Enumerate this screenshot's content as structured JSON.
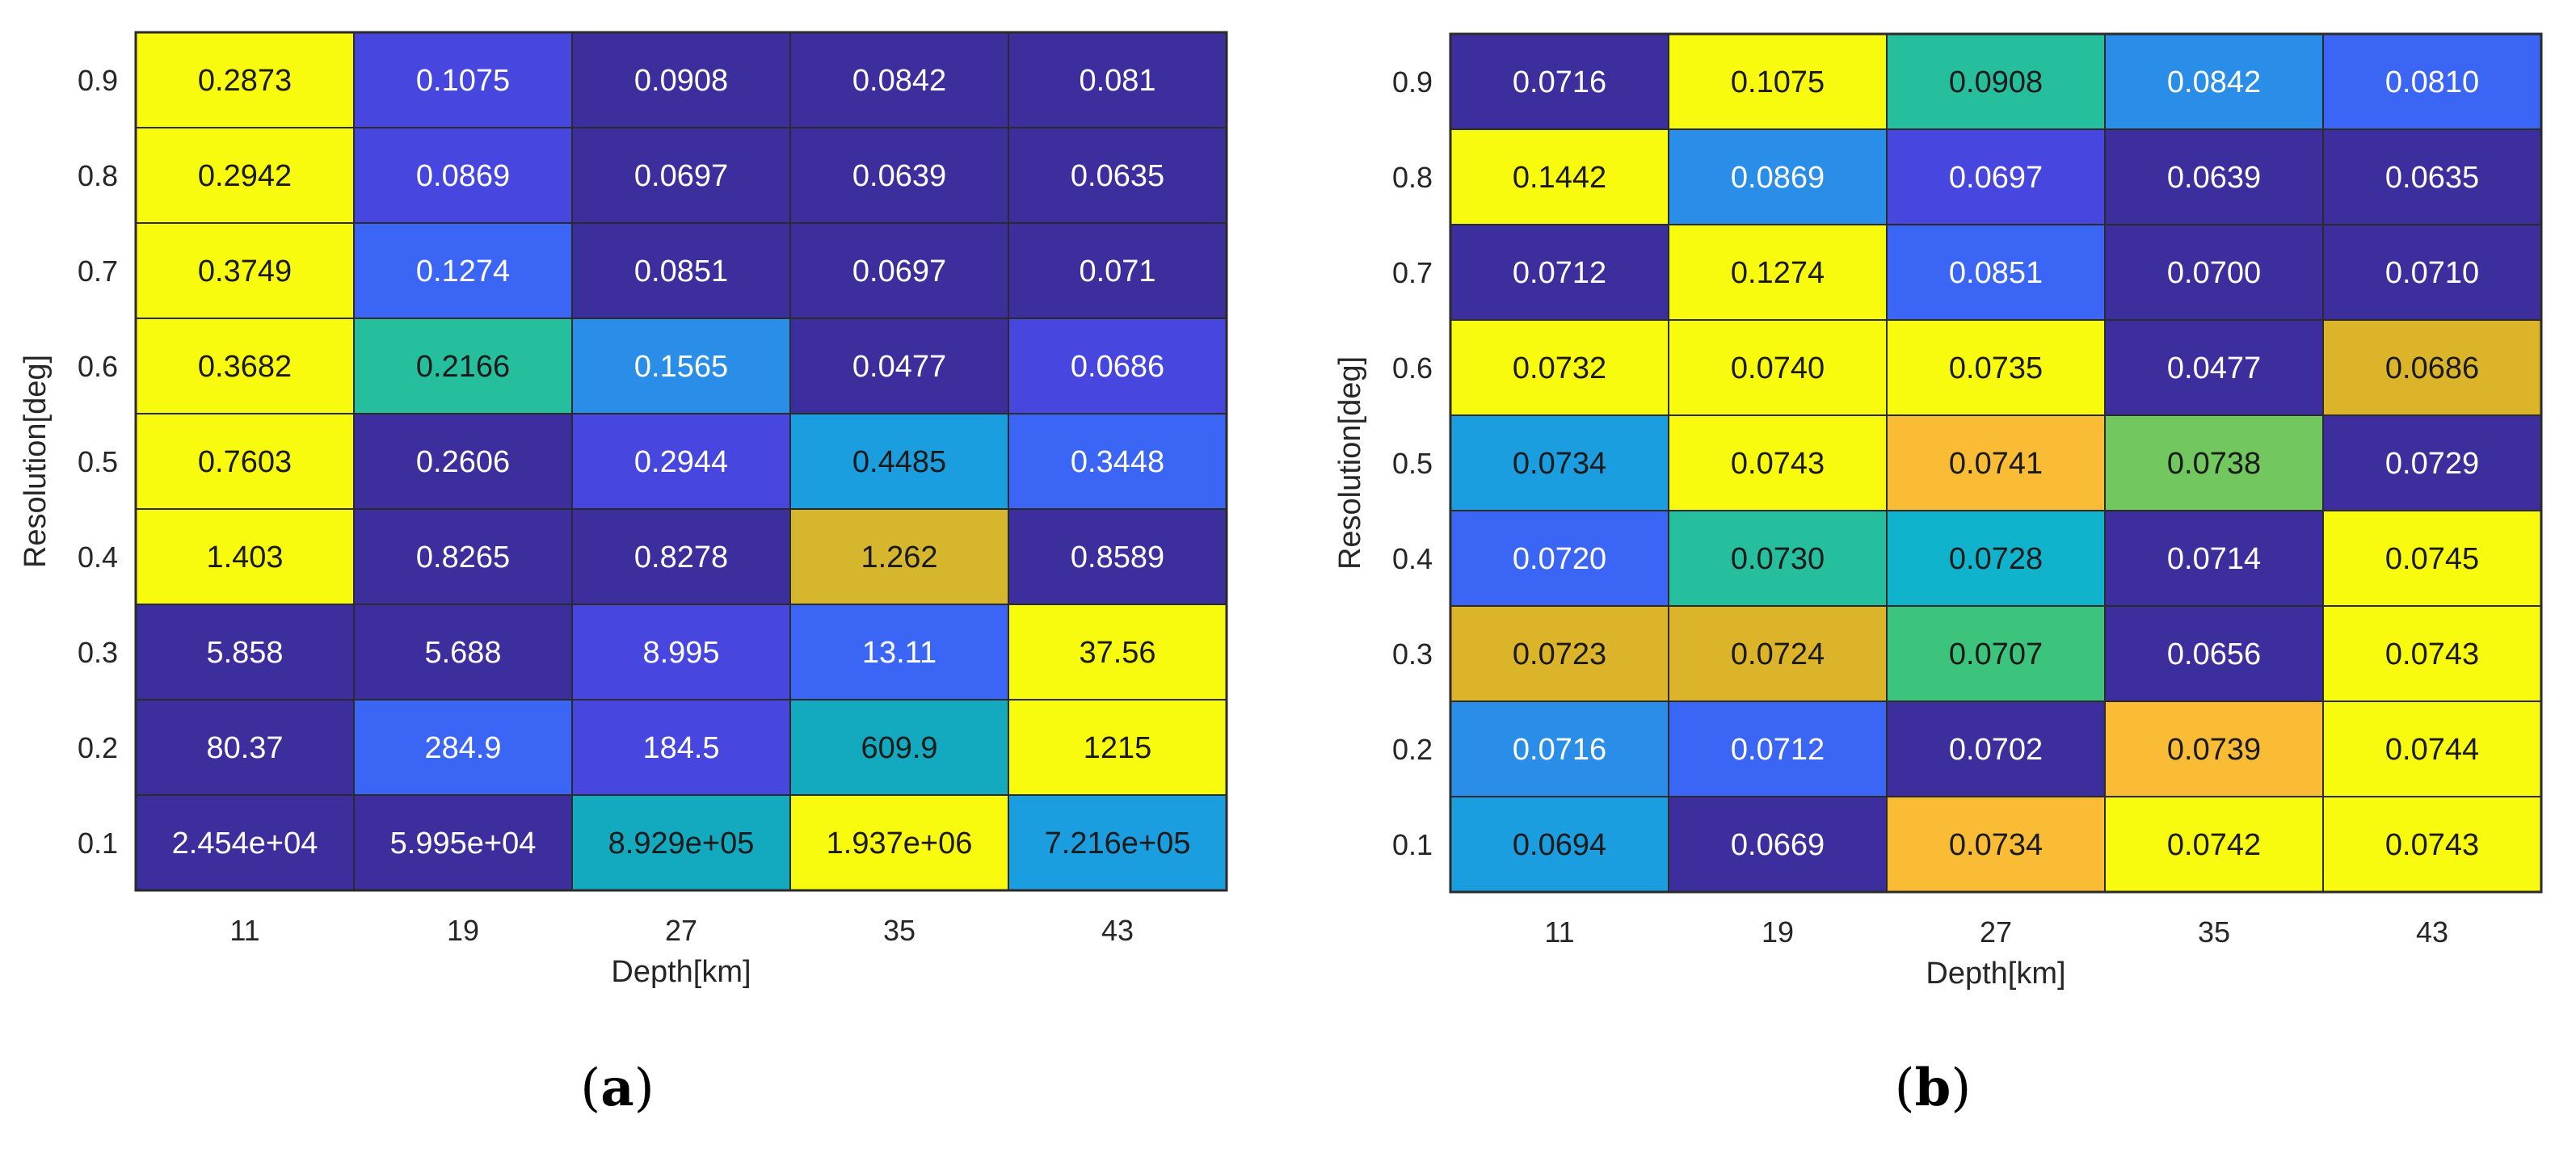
{
  "colors": {
    "dark_blue": "#3d2e9e",
    "blue": "#4747e0",
    "mid_blue": "#3b66f5",
    "sky_blue": "#2a8ee8",
    "light_blue": "#1a9ee0",
    "teal": "#13aabf",
    "cyan": "#0fb4cc",
    "green_teal": "#26bf9e",
    "green": "#3cc47c",
    "light_green": "#72c75f",
    "olive": "#d5b62d",
    "dark_yellow": "#dcb42a",
    "orange": "#fbbc35",
    "bright_yellow": "#f9fb0e",
    "text_dark": "#1a1a1a",
    "text_light": "#ffffff",
    "border": "#2b2b2b"
  },
  "chart_data": [
    {
      "type": "heatmap",
      "panel_label": "a",
      "xlabel": "Depth[km]",
      "ylabel": "Resolution[deg]",
      "x": [
        "11",
        "19",
        "27",
        "35",
        "43"
      ],
      "y": [
        "0.9",
        "0.8",
        "0.7",
        "0.6",
        "0.5",
        "0.4",
        "0.3",
        "0.2",
        "0.1"
      ],
      "values": [
        [
          "0.2873",
          "0.1075",
          "0.0908",
          "0.0842",
          "0.081"
        ],
        [
          "0.2942",
          "0.0869",
          "0.0697",
          "0.0639",
          "0.0635"
        ],
        [
          "0.3749",
          "0.1274",
          "0.0851",
          "0.0697",
          "0.071"
        ],
        [
          "0.3682",
          "0.2166",
          "0.1565",
          "0.0477",
          "0.0686"
        ],
        [
          "0.7603",
          "0.2606",
          "0.2944",
          "0.4485",
          "0.3448"
        ],
        [
          "1.403",
          "0.8265",
          "0.8278",
          "1.262",
          "0.8589"
        ],
        [
          "5.858",
          "5.688",
          "8.995",
          "13.11",
          "37.56"
        ],
        [
          "80.37",
          "284.9",
          "184.5",
          "609.9",
          "1215"
        ],
        [
          "2.454e+04",
          "5.995e+04",
          "8.929e+05",
          "1.937e+06",
          "7.216e+05"
        ]
      ],
      "cell_colors": [
        [
          "bright_yellow",
          "blue",
          "dark_blue",
          "dark_blue",
          "dark_blue"
        ],
        [
          "bright_yellow",
          "blue",
          "dark_blue",
          "dark_blue",
          "dark_blue"
        ],
        [
          "bright_yellow",
          "mid_blue",
          "dark_blue",
          "dark_blue",
          "dark_blue"
        ],
        [
          "bright_yellow",
          "green_teal",
          "sky_blue",
          "dark_blue",
          "blue"
        ],
        [
          "bright_yellow",
          "dark_blue",
          "blue",
          "light_blue",
          "mid_blue"
        ],
        [
          "bright_yellow",
          "dark_blue",
          "dark_blue",
          "olive",
          "dark_blue"
        ],
        [
          "dark_blue",
          "dark_blue",
          "blue",
          "mid_blue",
          "bright_yellow"
        ],
        [
          "dark_blue",
          "mid_blue",
          "blue",
          "teal",
          "bright_yellow"
        ],
        [
          "dark_blue",
          "dark_blue",
          "teal",
          "bright_yellow",
          "light_blue"
        ]
      ]
    },
    {
      "type": "heatmap",
      "panel_label": "b",
      "xlabel": "Depth[km]",
      "ylabel": "Resolution[deg]",
      "x": [
        "11",
        "19",
        "27",
        "35",
        "43"
      ],
      "y": [
        "0.9",
        "0.8",
        "0.7",
        "0.6",
        "0.5",
        "0.4",
        "0.3",
        "0.2",
        "0.1"
      ],
      "values": [
        [
          "0.0716",
          "0.1075",
          "0.0908",
          "0.0842",
          "0.0810"
        ],
        [
          "0.1442",
          "0.0869",
          "0.0697",
          "0.0639",
          "0.0635"
        ],
        [
          "0.0712",
          "0.1274",
          "0.0851",
          "0.0700",
          "0.0710"
        ],
        [
          "0.0732",
          "0.0740",
          "0.0735",
          "0.0477",
          "0.0686"
        ],
        [
          "0.0734",
          "0.0743",
          "0.0741",
          "0.0738",
          "0.0729"
        ],
        [
          "0.0720",
          "0.0730",
          "0.0728",
          "0.0714",
          "0.0745"
        ],
        [
          "0.0723",
          "0.0724",
          "0.0707",
          "0.0656",
          "0.0743"
        ],
        [
          "0.0716",
          "0.0712",
          "0.0702",
          "0.0739",
          "0.0744"
        ],
        [
          "0.0694",
          "0.0669",
          "0.0734",
          "0.0742",
          "0.0743"
        ]
      ],
      "cell_colors": [
        [
          "dark_blue",
          "bright_yellow",
          "green_teal",
          "sky_blue",
          "mid_blue"
        ],
        [
          "bright_yellow",
          "sky_blue",
          "blue",
          "dark_blue",
          "dark_blue"
        ],
        [
          "dark_blue",
          "bright_yellow",
          "mid_blue",
          "dark_blue",
          "dark_blue"
        ],
        [
          "bright_yellow",
          "bright_yellow",
          "bright_yellow",
          "dark_blue",
          "dark_yellow"
        ],
        [
          "light_blue",
          "bright_yellow",
          "orange",
          "light_green",
          "dark_blue"
        ],
        [
          "mid_blue",
          "green_teal",
          "cyan",
          "dark_blue",
          "bright_yellow"
        ],
        [
          "dark_yellow",
          "dark_yellow",
          "green",
          "dark_blue",
          "bright_yellow"
        ],
        [
          "sky_blue",
          "mid_blue",
          "dark_blue",
          "orange",
          "bright_yellow"
        ],
        [
          "light_blue",
          "dark_blue",
          "orange",
          "bright_yellow",
          "bright_yellow"
        ]
      ]
    }
  ]
}
